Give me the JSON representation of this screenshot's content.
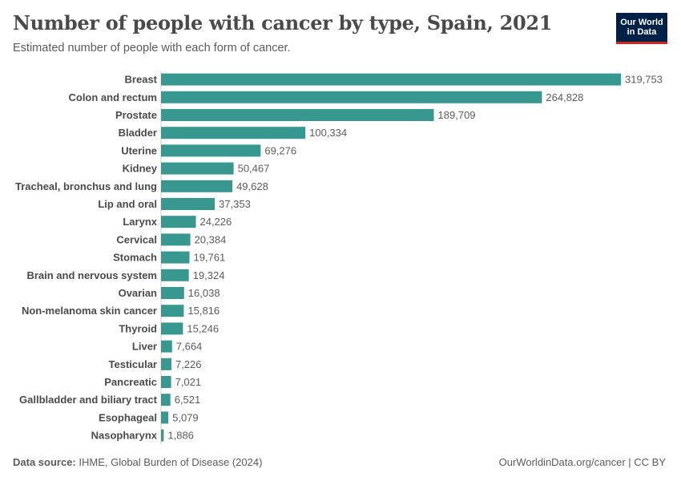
{
  "header": {
    "title": "Number of people with cancer by type, Spain, 2021",
    "subtitle": "Estimated number of people with each form of cancer."
  },
  "logo": {
    "line1": "Our World",
    "line2": "in Data"
  },
  "footer": {
    "source_label": "Data source:",
    "source_text": "IHME, Global Burden of Disease (2024)",
    "url_text": "OurWorldinData.org/cancer | CC BY"
  },
  "colors": {
    "bar": "#38988f",
    "label": "#4a4a4a",
    "value": "#5b5b5b",
    "axis": "#cccccc",
    "logo_bg": "#002147",
    "logo_accent": "#ce261e"
  },
  "chart_data": {
    "type": "bar",
    "orientation": "horizontal",
    "categories": [
      "Breast",
      "Colon and rectum",
      "Prostate",
      "Bladder",
      "Uterine",
      "Kidney",
      "Tracheal, bronchus and lung",
      "Lip and oral",
      "Larynx",
      "Cervical",
      "Stomach",
      "Brain and nervous system",
      "Ovarian",
      "Non-melanoma skin cancer",
      "Thyroid",
      "Liver",
      "Testicular",
      "Pancreatic",
      "Gallbladder and biliary tract",
      "Esophageal",
      "Nasopharynx"
    ],
    "values": [
      319753,
      264828,
      189709,
      100334,
      69276,
      50467,
      49628,
      37353,
      24226,
      20384,
      19761,
      19324,
      16038,
      15816,
      15246,
      7664,
      7226,
      7021,
      6521,
      5079,
      1886
    ],
    "value_labels": [
      "319,753",
      "264,828",
      "189,709",
      "100,334",
      "69,276",
      "50,467",
      "49,628",
      "37,353",
      "24,226",
      "20,384",
      "19,761",
      "19,324",
      "16,038",
      "15,816",
      "15,246",
      "7,664",
      "7,226",
      "7,021",
      "6,521",
      "5,079",
      "1,886"
    ],
    "xlim": [
      0,
      319753
    ]
  }
}
